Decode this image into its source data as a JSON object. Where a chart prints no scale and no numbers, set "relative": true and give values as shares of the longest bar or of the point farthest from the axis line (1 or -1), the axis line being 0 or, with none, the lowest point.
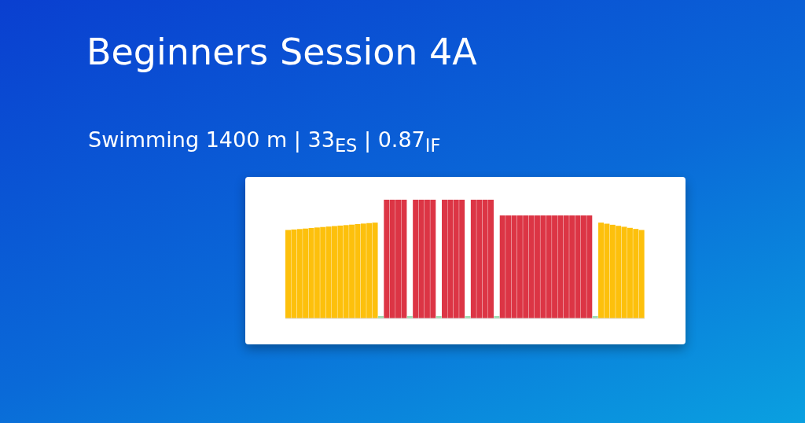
{
  "chart_data": {
    "type": "bar",
    "title": "Beginners Session 4A",
    "subtitle": "Swimming 1400 m | 33$_{ES}$ | 0.87$_{IF}$",
    "relative": true,
    "categories": [
      null,
      null,
      null,
      null,
      null,
      null,
      null,
      null,
      null,
      null,
      null,
      null,
      null,
      null,
      null,
      null,
      null,
      null,
      null,
      null,
      null,
      null,
      null,
      null,
      null,
      null,
      null,
      null,
      null,
      null,
      null,
      null,
      null,
      null,
      null,
      null,
      null,
      null,
      null,
      null,
      null,
      null,
      null,
      null,
      null,
      null,
      null,
      null,
      null,
      null,
      null,
      null,
      null,
      null,
      null,
      null,
      null,
      null,
      null,
      null,
      null,
      null
    ],
    "values": [
      0.745,
      0.749,
      0.753,
      0.757,
      0.762,
      0.766,
      0.77,
      0.774,
      0.778,
      0.782,
      0.786,
      0.79,
      0.795,
      0.799,
      0.803,
      0.807,
      0.02,
      1,
      1,
      1,
      1,
      0.02,
      1,
      1,
      1,
      1,
      0.02,
      1,
      1,
      1,
      1,
      0.02,
      1,
      1,
      1,
      1,
      0.02,
      0.868,
      0.868,
      0.868,
      0.868,
      0.868,
      0.868,
      0.868,
      0.868,
      0.868,
      0.868,
      0.868,
      0.868,
      0.868,
      0.868,
      0.868,
      0.868,
      0.02,
      0.807,
      0.798,
      0.789,
      0.78,
      0.772,
      0.763,
      0.754,
      0.745
    ],
    "colors": [
      "#fdc00c",
      "#fdc00c",
      "#fdc00c",
      "#fdc00c",
      "#fdc00c",
      "#fdc00c",
      "#fdc00c",
      "#fdc00c",
      "#fdc00c",
      "#fdc00c",
      "#fdc00c",
      "#fdc00c",
      "#fdc00c",
      "#fdc00c",
      "#fdc00c",
      "#fdc00c",
      "#9ddcb0",
      "#dc3545",
      "#dc3545",
      "#dc3545",
      "#dc3545",
      "#9ddcb0",
      "#dc3545",
      "#dc3545",
      "#dc3545",
      "#dc3545",
      "#9ddcb0",
      "#dc3545",
      "#dc3545",
      "#dc3545",
      "#dc3545",
      "#9ddcb0",
      "#dc3545",
      "#dc3545",
      "#dc3545",
      "#dc3545",
      "#9ddcb0",
      "#dc3545",
      "#dc3545",
      "#dc3545",
      "#dc3545",
      "#dc3545",
      "#dc3545",
      "#dc3545",
      "#dc3545",
      "#dc3545",
      "#dc3545",
      "#dc3545",
      "#dc3545",
      "#dc3545",
      "#dc3545",
      "#dc3545",
      "#dc3545",
      "#9ddcb0",
      "#fdc00c",
      "#fdc00c",
      "#fdc00c",
      "#fdc00c",
      "#fdc00c",
      "#fdc00c",
      "#fdc00c",
      "#fdc00c"
    ]
  }
}
